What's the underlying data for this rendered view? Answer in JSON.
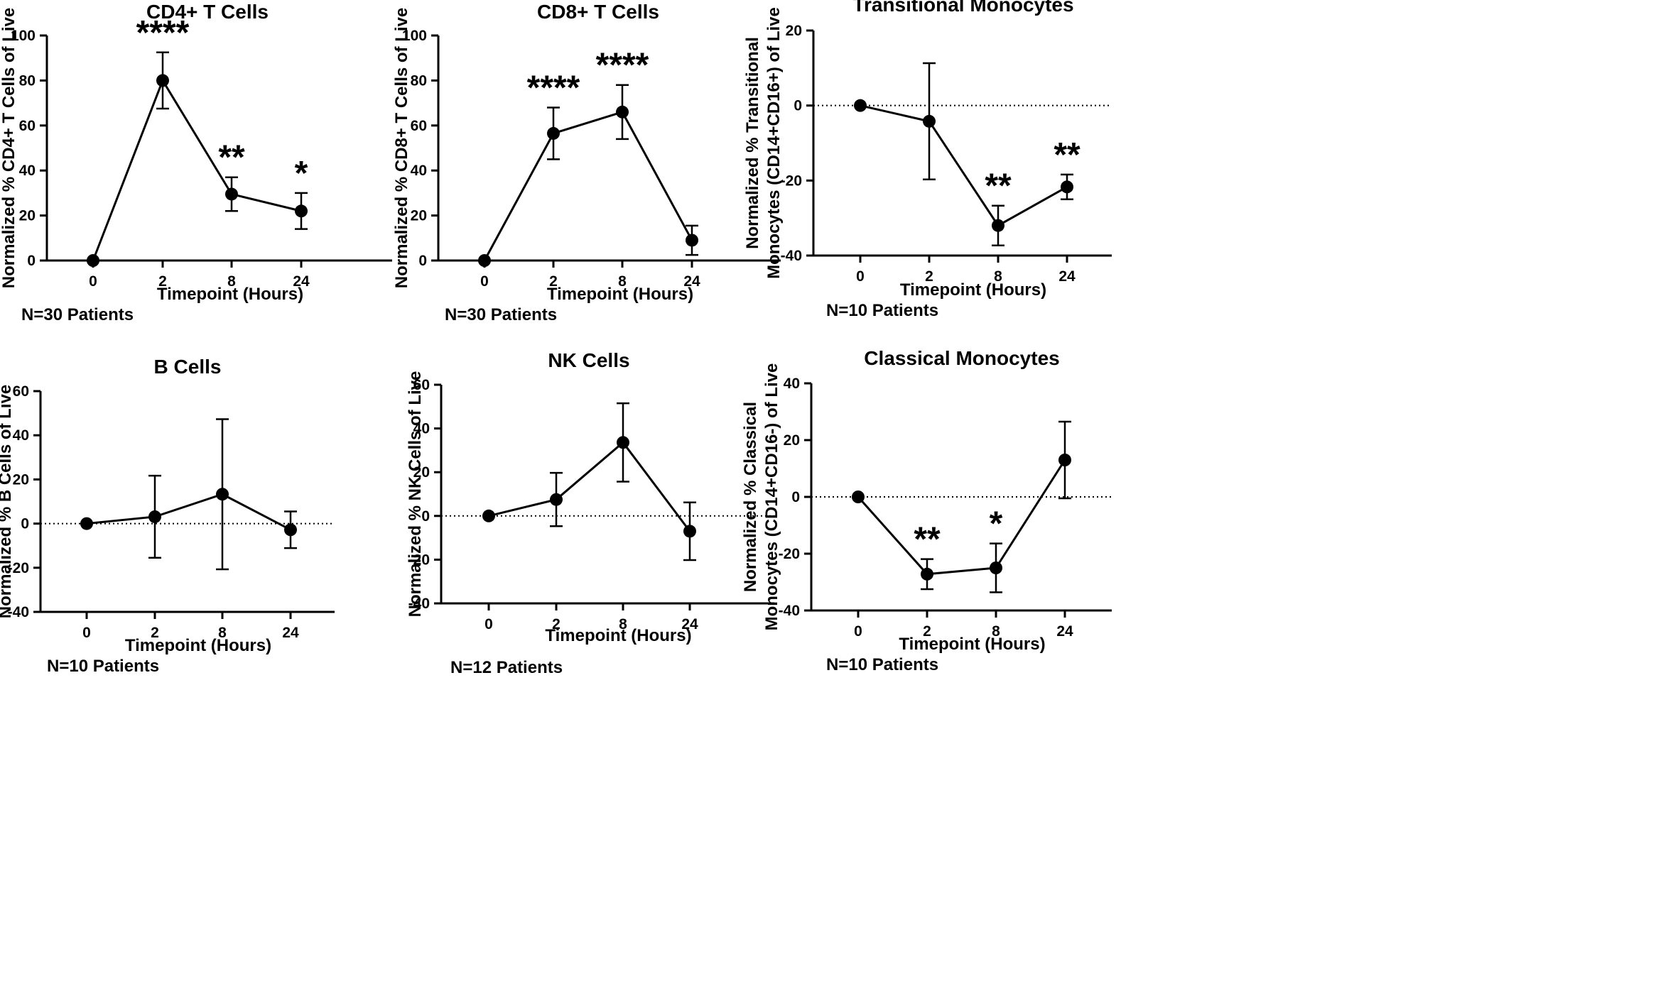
{
  "colors": {
    "line": "#000000",
    "marker": "#000000",
    "background": "#ffffff"
  },
  "chart_data": [
    {
      "type": "line",
      "title": "CD4+ T Cells",
      "xlabel": "Timepoint (Hours)",
      "ylabel": "Normalized % CD4+ T Cells of Live",
      "categories": [
        "0",
        "2",
        "8",
        "24"
      ],
      "series": [
        {
          "name": "mean",
          "values": [
            0,
            80,
            29.5,
            22
          ],
          "err_low": [
            0,
            12.5,
            7.5,
            8
          ],
          "err_high": [
            0,
            12.5,
            7.5,
            8
          ]
        }
      ],
      "ylim": [
        0,
        100
      ],
      "yticks": [
        "0",
        "20",
        "40",
        "60",
        "80",
        "100"
      ],
      "zero_line": false,
      "significance": [
        "",
        "****",
        "**",
        "*"
      ],
      "note": "N=30 Patients"
    },
    {
      "type": "line",
      "title": "CD8+ T Cells",
      "xlabel": "Timepoint (Hours)",
      "ylabel": "Normalized % CD8+ T Cells of Live",
      "categories": [
        "0",
        "2",
        "8",
        "24"
      ],
      "series": [
        {
          "name": "mean",
          "values": [
            0,
            56.5,
            66,
            9
          ],
          "err_low": [
            0,
            11.5,
            12,
            6.5
          ],
          "err_high": [
            0,
            11.5,
            12,
            6.5
          ]
        }
      ],
      "ylim": [
        0,
        100
      ],
      "yticks": [
        "0",
        "20",
        "40",
        "60",
        "80",
        "100"
      ],
      "zero_line": false,
      "significance": [
        "",
        "****",
        "****",
        ""
      ],
      "note": "N=30 Patients"
    },
    {
      "type": "line",
      "title": "Transitional Monocytes",
      "xlabel": "Timepoint (Hours)",
      "ylabel": [
        "Normalized % Transitional",
        "Monocytes (CD14+CD16+) of Live"
      ],
      "categories": [
        "0",
        "2",
        "8",
        "24"
      ],
      "series": [
        {
          "name": "mean",
          "values": [
            0,
            -4.2,
            -32,
            -21.7
          ],
          "err_low": [
            0,
            15.5,
            5.3,
            3.3
          ],
          "err_high": [
            0,
            15.5,
            5.3,
            3.3
          ]
        }
      ],
      "ylim": [
        -40,
        20
      ],
      "yticks": [
        "-40",
        "-20",
        "0",
        "20"
      ],
      "zero_line": true,
      "significance": [
        "",
        "",
        "**",
        "**"
      ],
      "note": "N=10 Patients"
    },
    {
      "type": "line",
      "title": "B Cells",
      "xlabel": "Timepoint (Hours)",
      "ylabel": "Normalized % B Cells of Live",
      "categories": [
        "0",
        "2",
        "8",
        "24"
      ],
      "series": [
        {
          "name": "mean",
          "values": [
            0,
            3.1,
            13.3,
            -2.8
          ],
          "err_low": [
            0,
            18.6,
            34,
            8.3
          ],
          "err_high": [
            0,
            18.6,
            34,
            8.3
          ]
        }
      ],
      "ylim": [
        -40,
        60
      ],
      "yticks": [
        "-40",
        "-20",
        "0",
        "20",
        "40",
        "60"
      ],
      "zero_line": true,
      "significance": [
        "",
        "",
        "",
        ""
      ],
      "note": "N=10 Patients"
    },
    {
      "type": "line",
      "title": "NK Cells",
      "xlabel": "Timepoint (Hours)",
      "ylabel": "Normalized % NK Cells of Live",
      "categories": [
        "0",
        "2",
        "8",
        "24"
      ],
      "series": [
        {
          "name": "mean",
          "values": [
            0,
            7.5,
            33.6,
            -7
          ],
          "err_low": [
            0,
            12.2,
            17.9,
            13.2
          ],
          "err_high": [
            0,
            12.2,
            17.9,
            13.2
          ]
        }
      ],
      "ylim": [
        -40,
        60
      ],
      "yticks": [
        "-40",
        "-20",
        "0",
        "20",
        "40",
        "60"
      ],
      "zero_line": true,
      "significance": [
        "",
        "",
        "",
        ""
      ],
      "note": "N=12 Patients"
    },
    {
      "type": "line",
      "title": "Classical Monocytes",
      "xlabel": "Timepoint (Hours)",
      "ylabel": [
        "Normalized % Classical",
        "Monocytes (CD14+CD16-) of Live"
      ],
      "categories": [
        "0",
        "2",
        "8",
        "24"
      ],
      "series": [
        {
          "name": "mean",
          "values": [
            0,
            -27.2,
            -25,
            13
          ],
          "err_low": [
            0,
            5.3,
            8.6,
            13.5
          ],
          "err_high": [
            0,
            5.3,
            8.6,
            13.5
          ]
        }
      ],
      "ylim": [
        -40,
        40
      ],
      "yticks": [
        "-40",
        "-20",
        "0",
        "20",
        "40"
      ],
      "zero_line": true,
      "significance": [
        "",
        "**",
        "*",
        ""
      ],
      "note": "N=10 Patients"
    }
  ]
}
